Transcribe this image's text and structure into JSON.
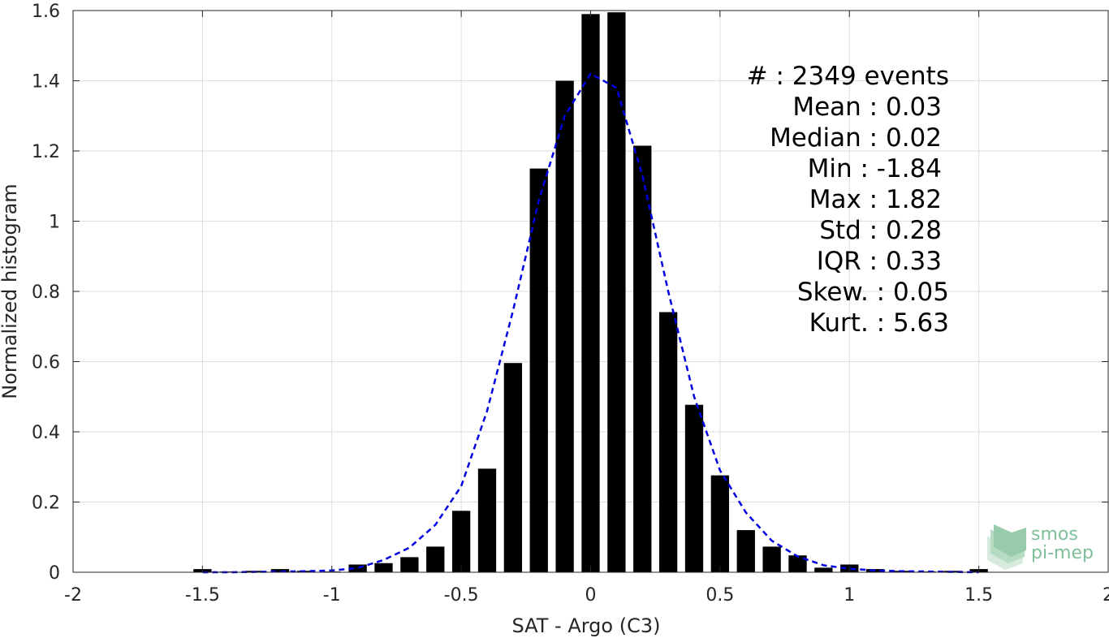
{
  "chart_data": {
    "type": "bar",
    "xlabel": "SAT - Argo (C3)",
    "ylabel": "Normalized histogram",
    "xlim": [
      -2,
      2
    ],
    "ylim": [
      0,
      1.6
    ],
    "xticks": [
      -2,
      -1.5,
      -1,
      -0.5,
      0,
      0.5,
      1,
      1.5,
      2
    ],
    "xtick_labels": [
      "-2",
      "-1.5",
      "-1",
      "-0.5",
      "0",
      "0.5",
      "1",
      "1.5",
      "2"
    ],
    "yticks": [
      0,
      0.2,
      0.4,
      0.6,
      0.8,
      1,
      1.2,
      1.4,
      1.6
    ],
    "ytick_labels": [
      "0",
      "0.2",
      "0.4",
      "0.6",
      "0.8",
      "1",
      "1.2",
      "1.4",
      "1.6"
    ],
    "grid": true,
    "bar_width": 0.07,
    "bar_color": "#000000",
    "bars": {
      "x": [
        -1.5,
        -1.4,
        -1.3,
        -1.2,
        -1.1,
        -1.0,
        -0.9,
        -0.8,
        -0.7,
        -0.6,
        -0.5,
        -0.4,
        -0.3,
        -0.2,
        -0.1,
        0.0,
        0.1,
        0.2,
        0.3,
        0.4,
        0.5,
        0.6,
        0.7,
        0.8,
        0.9,
        1.0,
        1.1,
        1.2,
        1.3,
        1.4,
        1.5
      ],
      "values": [
        0.009,
        0.002,
        0.004,
        0.009,
        0.004,
        0.002,
        0.022,
        0.026,
        0.043,
        0.073,
        0.175,
        0.295,
        0.596,
        1.15,
        1.4,
        1.59,
        1.595,
        1.215,
        0.741,
        0.477,
        0.276,
        0.12,
        0.073,
        0.048,
        0.013,
        0.022,
        0.009,
        0.004,
        0.002,
        0.004,
        0.009
      ]
    },
    "fit": {
      "style": "dashed",
      "color": "#0000e0",
      "x": [
        -1.5,
        -1.4,
        -1.3,
        -1.2,
        -1.1,
        -1.0,
        -0.9,
        -0.8,
        -0.7,
        -0.6,
        -0.5,
        -0.4,
        -0.3,
        -0.2,
        -0.1,
        0.0,
        0.1,
        0.2,
        0.3,
        0.4,
        0.5,
        0.6,
        0.7,
        0.8,
        0.9,
        1.0,
        1.1,
        1.2,
        1.3,
        1.4,
        1.5
      ],
      "values": [
        0.0,
        0.0,
        0.001,
        0.002,
        0.003,
        0.005,
        0.012,
        0.035,
        0.07,
        0.135,
        0.245,
        0.46,
        0.745,
        1.06,
        1.3,
        1.42,
        1.38,
        1.13,
        0.8,
        0.5,
        0.29,
        0.17,
        0.09,
        0.045,
        0.02,
        0.01,
        0.005,
        0.003,
        0.002,
        0.001,
        0.0
      ]
    }
  },
  "stats": {
    "count": "#  : 2349 events",
    "mean": "Mean : 0.03",
    "median": "Median : 0.02",
    "min": "Min : -1.84",
    "max": "Max : 1.82",
    "std": "Std : 0.28",
    "iqr": "IQR : 0.33",
    "skew": "Skew. : 0.05",
    "kurt": "Kurt. : 5.63"
  },
  "logo": {
    "line1": "smos",
    "line2": "pi-mep",
    "color": "#7fbf9a"
  }
}
